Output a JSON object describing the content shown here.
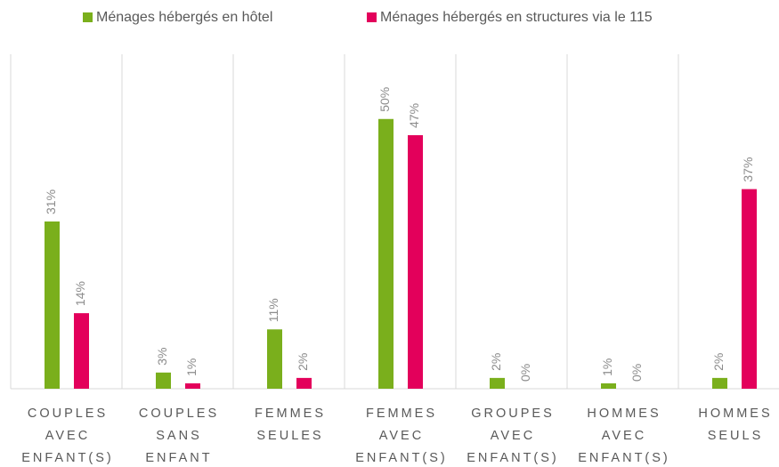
{
  "chart_data": {
    "type": "bar",
    "categories": [
      [
        "COUPLES",
        "AVEC",
        "ENFANT(S)"
      ],
      [
        "COUPLES",
        "SANS",
        "ENFANT"
      ],
      [
        "FEMMES",
        "SEULES"
      ],
      [
        "FEMMES",
        "AVEC",
        "ENFANT(S)"
      ],
      [
        "GROUPES",
        "AVEC",
        "ENFANT(S)"
      ],
      [
        "HOMMES",
        "AVEC",
        "ENFANT(S)"
      ],
      [
        "HOMMES",
        "SEULS"
      ]
    ],
    "series": [
      {
        "name": "Ménages hébergés en hôtel",
        "color": "#7aaf1c",
        "values": [
          31,
          3,
          11,
          50,
          2,
          1,
          2
        ],
        "value_labels": [
          "31%",
          "3%",
          "11%",
          "50%",
          "2%",
          "1%",
          "2%"
        ]
      },
      {
        "name": "Ménages hébergés en structures via le 115",
        "color": "#e3005b",
        "values": [
          14,
          1,
          2,
          47,
          0,
          0,
          37
        ],
        "value_labels": [
          "14%",
          "1%",
          "2%",
          "47%",
          "0%",
          "0%",
          "37%"
        ]
      }
    ],
    "ylim": [
      0,
      62
    ]
  }
}
